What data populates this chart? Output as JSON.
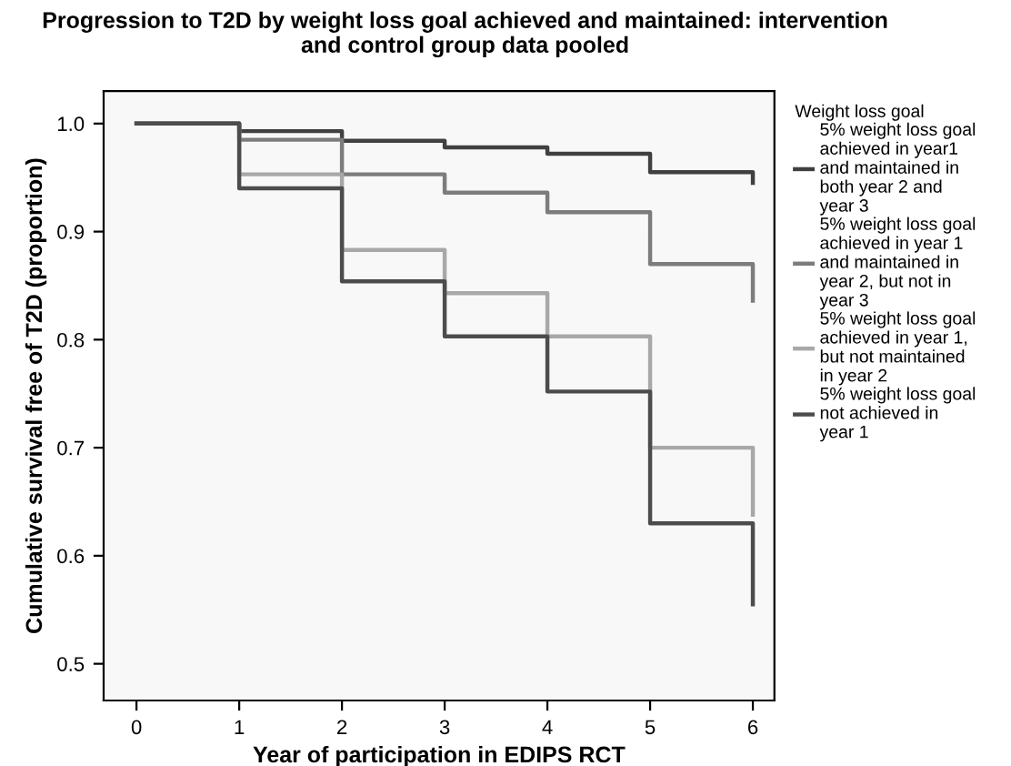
{
  "chart_data": {
    "type": "step",
    "title": "Progression to T2D by weight loss goal achieved and maintained: intervention\nand control group data pooled",
    "xlabel": "Year of participation in EDIPS RCT",
    "ylabel": "Cumulative survival free of T2D (proportion)",
    "legend_title": "Weight loss goal",
    "x": [
      0,
      1,
      2,
      3,
      4,
      5,
      6
    ],
    "series": [
      {
        "name": "5% weight loss goal\nachieved in year1\nand maintained in\nboth year 2 and\nyear 3",
        "color": "#404040",
        "values": [
          1.0,
          0.993,
          0.984,
          0.978,
          0.972,
          0.955,
          0.945
        ]
      },
      {
        "name": "5% weight loss goal\nachieved in year 1\nand maintained in\nyear 2, but not in\nyear 3",
        "color": "#7c7c7c",
        "values": [
          1.0,
          0.985,
          0.953,
          0.936,
          0.918,
          0.87,
          0.836
        ]
      },
      {
        "name": "5% weight loss goal\nachieved in year 1,\nbut not maintained\nin year 2",
        "color": "#a8a8a8",
        "values": [
          1.0,
          0.953,
          0.883,
          0.843,
          0.803,
          0.7,
          0.638
        ]
      },
      {
        "name": "5% weight loss goal\nnot achieved in\nyear 1",
        "color": "#4c4c4c",
        "values": [
          1.0,
          0.94,
          0.854,
          0.803,
          0.752,
          0.63,
          0.555
        ]
      }
    ],
    "xlim": [
      -0.32,
      6.21
    ],
    "xticks": [
      0,
      1,
      2,
      3,
      4,
      5,
      6
    ],
    "ylim": [
      0.466,
      1.03
    ],
    "yticks": [
      {
        "value": 0.5,
        "label": "0.5"
      },
      {
        "value": 0.6,
        "label": "0.6"
      },
      {
        "value": 0.7,
        "label": "0.7"
      },
      {
        "value": 0.8,
        "label": "0.8"
      },
      {
        "value": 0.9,
        "label": "0.9"
      },
      {
        "value": 1.0,
        "label": "1.0"
      }
    ],
    "grid": false,
    "legend": "right",
    "marker": "none",
    "line_style": "solid"
  }
}
